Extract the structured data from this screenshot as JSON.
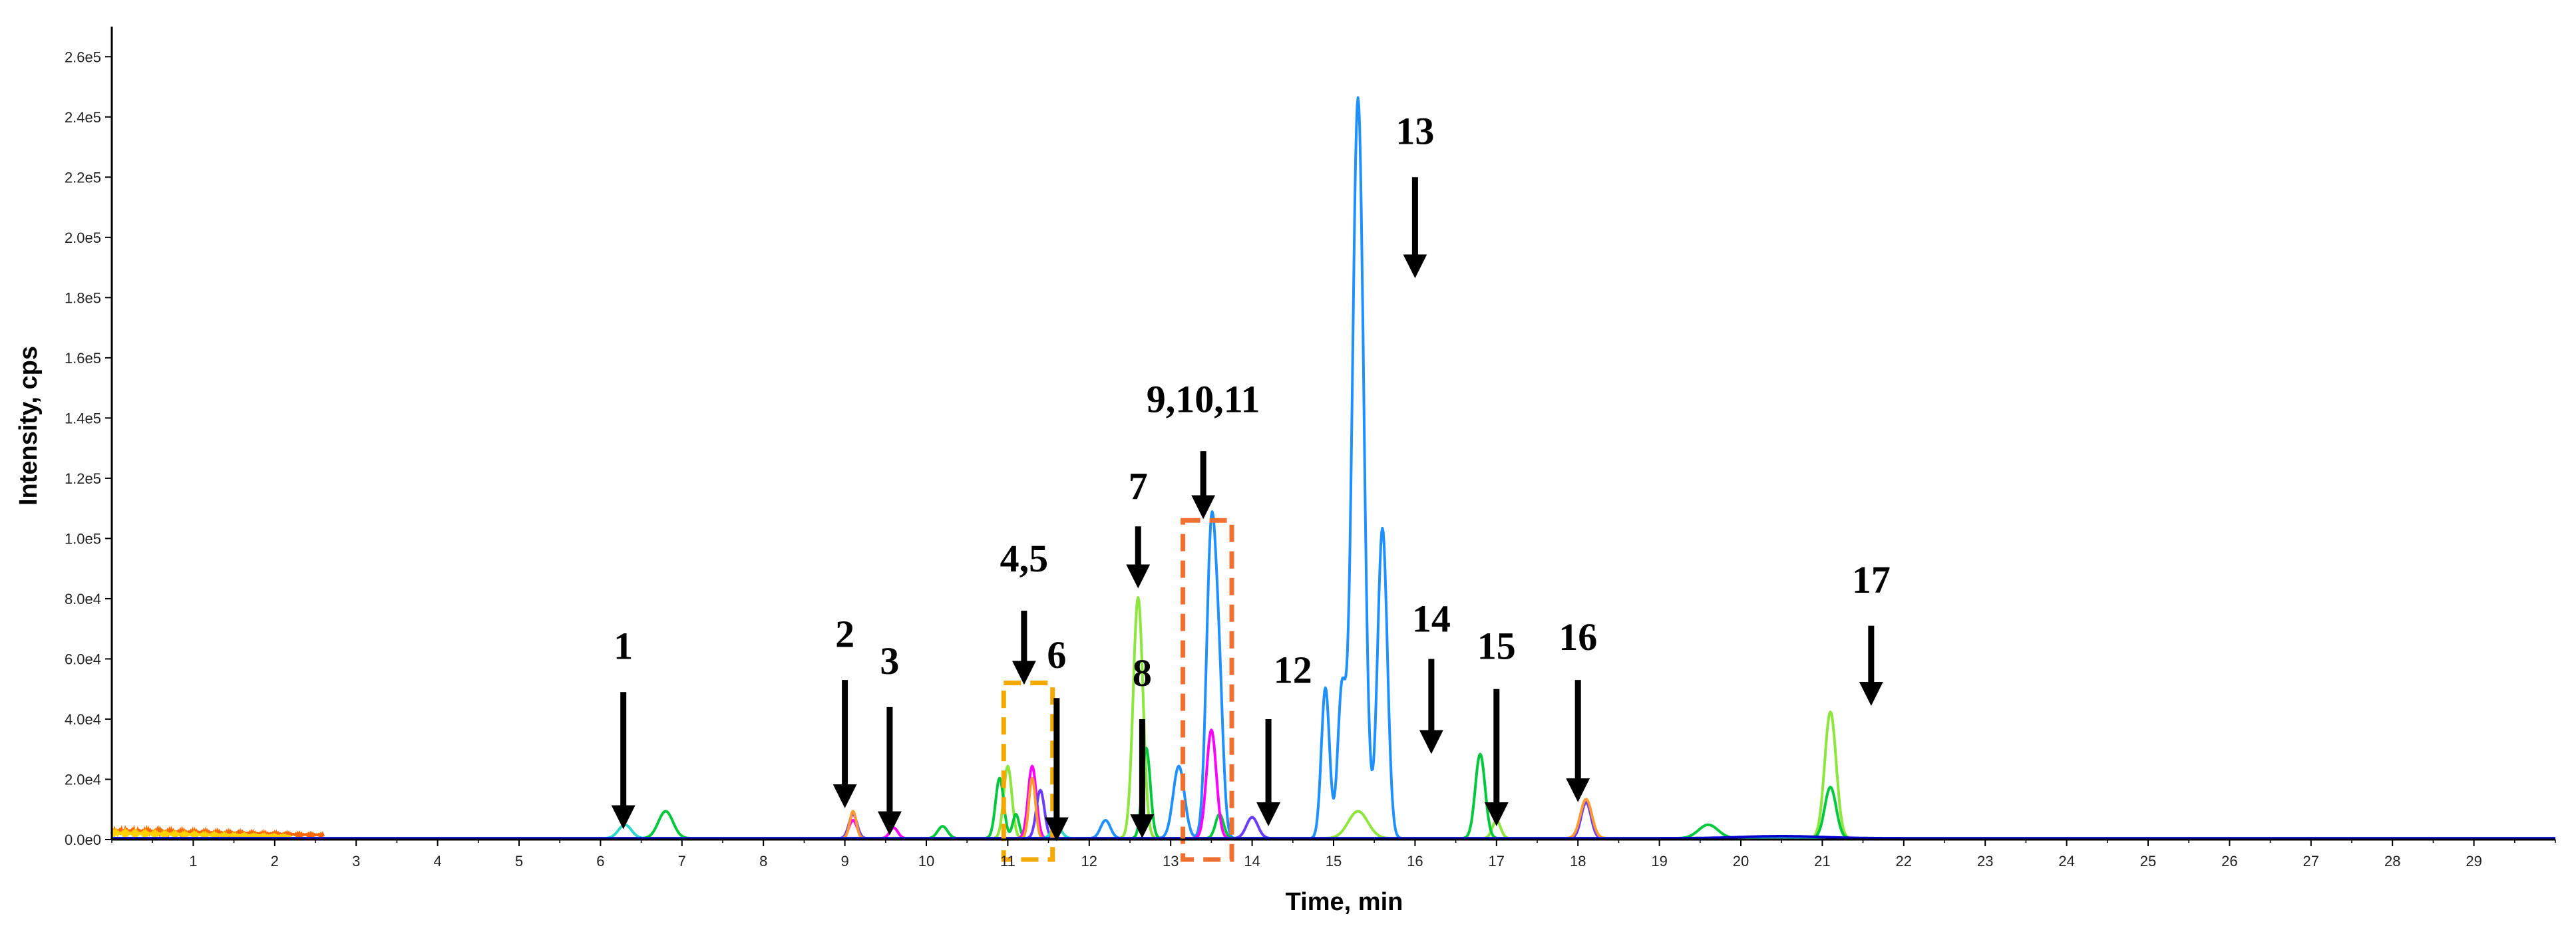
{
  "chart_data": {
    "type": "line",
    "xlabel": "Time, min",
    "ylabel": "Intensity, cps",
    "xlim": [
      0,
      30
    ],
    "ylim": [
      0,
      270000
    ],
    "y_tick_values": [
      0,
      20000,
      40000,
      60000,
      80000,
      100000,
      120000,
      140000,
      160000,
      180000,
      200000,
      220000,
      240000,
      260000
    ],
    "y_tick_labels": [
      "0.0e0",
      "2.0e4",
      "4.0e4",
      "6.0e4",
      "8.0e4",
      "1.0e5",
      "1.2e5",
      "1.4e5",
      "1.6e5",
      "1.8e5",
      "2.0e5",
      "2.2e5",
      "2.4e5",
      "2.6e5"
    ],
    "x_tick_values": [
      1,
      2,
      3,
      4,
      5,
      6,
      7,
      8,
      9,
      10,
      11,
      12,
      13,
      14,
      15,
      16,
      17,
      18,
      19,
      20,
      21,
      22,
      23,
      24,
      25,
      26,
      27,
      28,
      29
    ],
    "x_tick_labels": [
      "1",
      "2",
      "3",
      "4",
      "5",
      "6",
      "7",
      "8",
      "9",
      "10",
      "11",
      "12",
      "13",
      "14",
      "15",
      "16",
      "17",
      "18",
      "19",
      "20",
      "21",
      "22",
      "23",
      "24",
      "25",
      "26",
      "27",
      "28",
      "29"
    ],
    "grid": false,
    "baseline_noise": [
      {
        "color": "#ff6a00",
        "x_end": 2.6,
        "level": 3500
      },
      {
        "color": "#ffd200",
        "x_end": 2.2,
        "level": 2500
      }
    ],
    "series": [
      {
        "color": "#1e90ff",
        "peaks": [
          [
            15.3,
            246000,
            0.07
          ],
          [
            15.6,
            103000,
            0.06
          ],
          [
            14.9,
            50000,
            0.05
          ],
          [
            15.1,
            48000,
            0.05
          ],
          [
            13.5,
            102000,
            0.06
          ],
          [
            13.6,
            40000,
            0.05
          ],
          [
            13.1,
            24000,
            0.07
          ],
          [
            12.2,
            6000,
            0.06
          ]
        ]
      },
      {
        "color": "#8de63c",
        "peaks": [
          [
            12.6,
            80000,
            0.06
          ],
          [
            21.1,
            42000,
            0.07
          ],
          [
            15.3,
            9000,
            0.12
          ],
          [
            11.0,
            24000,
            0.05
          ],
          [
            17.0,
            6000,
            0.05
          ]
        ]
      },
      {
        "color": "#00c83c",
        "peaks": [
          [
            16.8,
            28000,
            0.06
          ],
          [
            21.1,
            17000,
            0.07
          ],
          [
            10.9,
            20000,
            0.05
          ],
          [
            11.1,
            8000,
            0.04
          ],
          [
            6.8,
            9000,
            0.09
          ],
          [
            19.6,
            4500,
            0.12
          ],
          [
            10.2,
            4000,
            0.06
          ],
          [
            12.7,
            30000,
            0.05
          ],
          [
            13.6,
            8000,
            0.05
          ]
        ]
      },
      {
        "color": "#ff00ff",
        "peaks": [
          [
            13.5,
            36000,
            0.06
          ],
          [
            11.3,
            24000,
            0.05
          ],
          [
            9.1,
            6000,
            0.05
          ],
          [
            9.6,
            3500,
            0.05
          ]
        ]
      },
      {
        "color": "#6a3cff",
        "peaks": [
          [
            9.1,
            8000,
            0.05
          ],
          [
            14.0,
            7000,
            0.07
          ],
          [
            18.1,
            12000,
            0.06
          ],
          [
            11.4,
            16000,
            0.05
          ]
        ]
      },
      {
        "color": "#ff9a30",
        "peaks": [
          [
            18.1,
            13000,
            0.07
          ],
          [
            11.3,
            20000,
            0.04
          ],
          [
            9.1,
            9000,
            0.04
          ]
        ]
      },
      {
        "color": "#2ad7c8",
        "peaks": [
          [
            6.3,
            4500,
            0.08
          ],
          [
            11.6,
            4000,
            0.06
          ]
        ]
      },
      {
        "color": "#0000cc",
        "peaks": [
          [
            20.5,
            700,
            0.5
          ]
        ]
      }
    ],
    "annotations": [
      {
        "label": "1",
        "label_x": 6.28,
        "label_y": 60000,
        "arrow_x": 6.28,
        "arrow_from": 49000,
        "arrow_to": 7000
      },
      {
        "label": "2",
        "label_x": 9.0,
        "label_y": 64000,
        "arrow_x": 9.0,
        "arrow_from": 53000,
        "arrow_to": 14000
      },
      {
        "label": "3",
        "label_x": 9.55,
        "label_y": 55000,
        "arrow_x": 9.55,
        "arrow_from": 44000,
        "arrow_to": 5000
      },
      {
        "label": "4,5",
        "label_x": 11.2,
        "label_y": 89000,
        "arrow_x": 11.2,
        "arrow_from": 76000,
        "arrow_to": 55000
      },
      {
        "label": "6",
        "label_x": 11.6,
        "label_y": 57000,
        "arrow_x": 11.6,
        "arrow_from": 47000,
        "arrow_to": 3000
      },
      {
        "label": "7",
        "label_x": 12.6,
        "label_y": 113000,
        "arrow_x": 12.6,
        "arrow_from": 104000,
        "arrow_to": 87000
      },
      {
        "label": "8",
        "label_x": 12.65,
        "label_y": 51000,
        "arrow_x": 12.65,
        "arrow_from": 40000,
        "arrow_to": 4000
      },
      {
        "label": "9,10,11",
        "label_x": 13.4,
        "label_y": 142000,
        "arrow_x": 13.4,
        "arrow_from": 129000,
        "arrow_to": 110000
      },
      {
        "label": "12",
        "label_x": 14.5,
        "label_y": 52000,
        "arrow_x": 14.2,
        "arrow_from": 40000,
        "arrow_to": 8000
      },
      {
        "label": "13",
        "label_x": 16.0,
        "label_y": 231000,
        "arrow_x": 16.0,
        "arrow_from": 220000,
        "arrow_to": 190000
      },
      {
        "label": "14",
        "label_x": 16.2,
        "label_y": 69000,
        "arrow_x": 16.2,
        "arrow_from": 60000,
        "arrow_to": 32000
      },
      {
        "label": "15",
        "label_x": 17.0,
        "label_y": 60000,
        "arrow_x": 17.0,
        "arrow_from": 50000,
        "arrow_to": 8000
      },
      {
        "label": "16",
        "label_x": 18.0,
        "label_y": 63000,
        "arrow_x": 18.0,
        "arrow_from": 53000,
        "arrow_to": 16000
      },
      {
        "label": "17",
        "label_x": 21.6,
        "label_y": 82000,
        "arrow_x": 21.6,
        "arrow_from": 71000,
        "arrow_to": 48000
      }
    ],
    "highlight_boxes": [
      {
        "color": "#f4a800",
        "x_min": 10.95,
        "x_max": 11.55,
        "y_min": 0,
        "y_max": 52000
      },
      {
        "color": "#f07030",
        "x_min": 13.15,
        "x_max": 13.75,
        "y_min": 0,
        "y_max": 106000
      }
    ]
  }
}
